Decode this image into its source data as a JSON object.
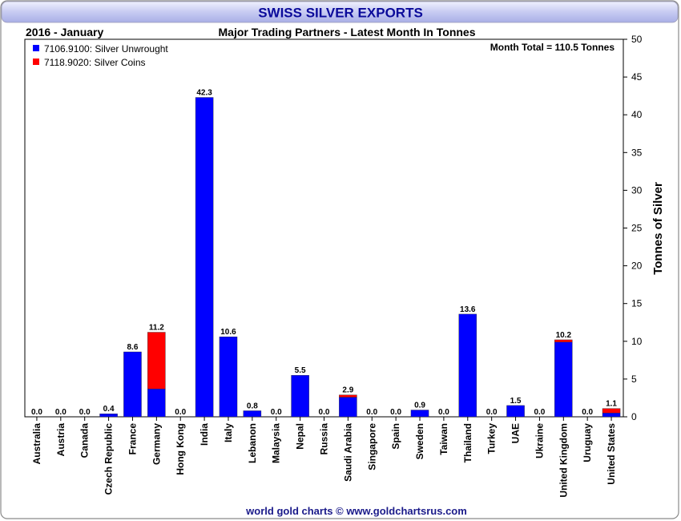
{
  "chart_data": {
    "type": "bar",
    "stacked": true,
    "title": "SWISS SILVER EXPORTS",
    "period": "2016 - January",
    "subtitle": "Major Trading Partners - Latest Month In Tonnes",
    "total_note": "Month Total = 110.5 Tonnes",
    "ylabel": "Tonnes of Silver",
    "xlabel": "",
    "ylim": [
      0,
      50
    ],
    "yticks": [
      0,
      5,
      10,
      15,
      20,
      25,
      30,
      35,
      40,
      45,
      50
    ],
    "y_axis_side": "right",
    "grid": false,
    "legend_position": "top-left",
    "categories": [
      "Australia",
      "Austria",
      "Canada",
      "Czech Republic",
      "France",
      "Germany",
      "Hong Kong",
      "India",
      "Italy",
      "Lebanon",
      "Malaysia",
      "Nepal",
      "Russia",
      "Saudi Arabia",
      "Singapore",
      "Spain",
      "Sweden",
      "Taiwan",
      "Thailand",
      "Turkey",
      "UAE",
      "Ukraine",
      "United Kingdom",
      "Uruguay",
      "United States"
    ],
    "series": [
      {
        "name": "7106.9100: Silver Unwrought",
        "color": "#0000ff",
        "values": [
          0,
          0,
          0,
          0.4,
          8.6,
          3.7,
          0,
          42.3,
          10.6,
          0.8,
          0,
          5.5,
          0,
          2.6,
          0,
          0,
          0.9,
          0,
          13.6,
          0,
          1.5,
          0,
          9.9,
          0,
          0.5
        ]
      },
      {
        "name": "7118.9020: Silver Coins",
        "color": "#ff0000",
        "values": [
          0,
          0,
          0,
          0,
          0,
          7.5,
          0,
          0,
          0,
          0,
          0,
          0,
          0,
          0.3,
          0,
          0,
          0,
          0,
          0,
          0,
          0,
          0,
          0.3,
          0,
          0.6
        ]
      }
    ],
    "totals": [
      "0.0",
      "0.0",
      "0.0",
      "0.4",
      "8.6",
      "11.2",
      "0.0",
      "42.3",
      "10.6",
      "0.8",
      "0.0",
      "5.5",
      "0.0",
      "2.9",
      "0.0",
      "0.0",
      "0.9",
      "0.0",
      "13.6",
      "0.0",
      "1.5",
      "0.0",
      "10.2",
      "0.0",
      "1.1"
    ]
  },
  "footer": "world gold charts © www.goldchartsrus.com",
  "colors": {
    "title_text": "#0a0a9a",
    "footer_text": "#1a1a8a"
  }
}
